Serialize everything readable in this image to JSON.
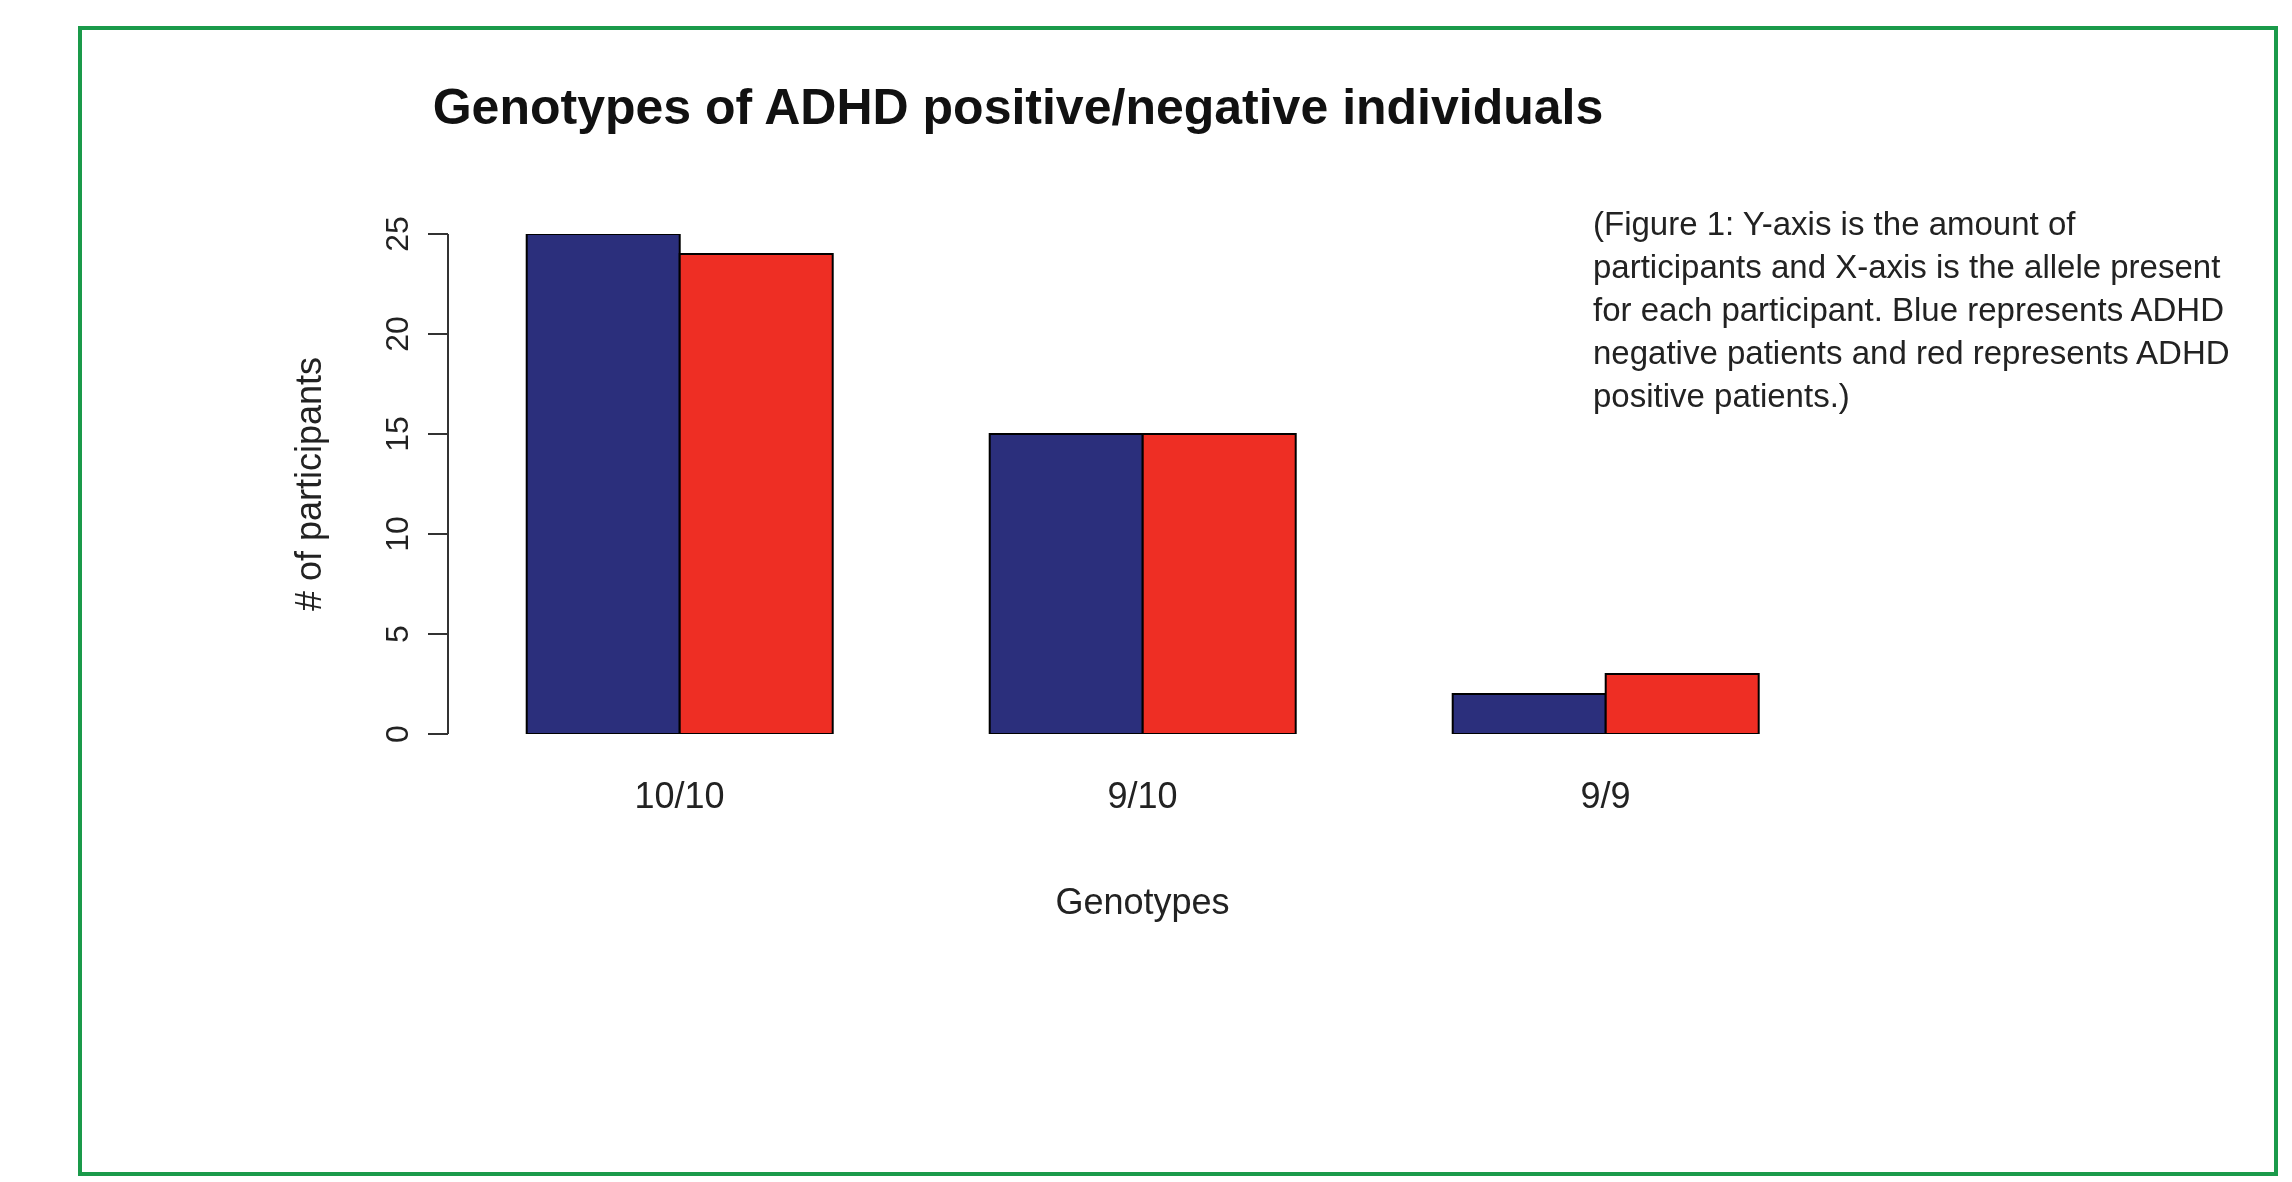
{
  "chart_data": {
    "type": "bar",
    "title": "Genotypes of ADHD positive/negative individuals",
    "xlabel": "Genotypes",
    "ylabel": "# of participants",
    "categories": [
      "10/10",
      "9/10",
      "9/9"
    ],
    "series": [
      {
        "color": "#2b2f7c",
        "values": [
          25,
          15,
          2
        ]
      },
      {
        "color": "#ee2e24",
        "values": [
          24,
          15,
          3
        ]
      }
    ],
    "ylim": [
      0,
      25
    ],
    "yticks": [
      0,
      5,
      10,
      15,
      20,
      25
    ],
    "grid": false,
    "legend": false,
    "annotations": [
      "(Figure 1: Y-axis is the amount of participants and X-axis is the allele present for each participant. Blue represents ADHD negative patients and red represents ADHD positive patients.)"
    ]
  }
}
